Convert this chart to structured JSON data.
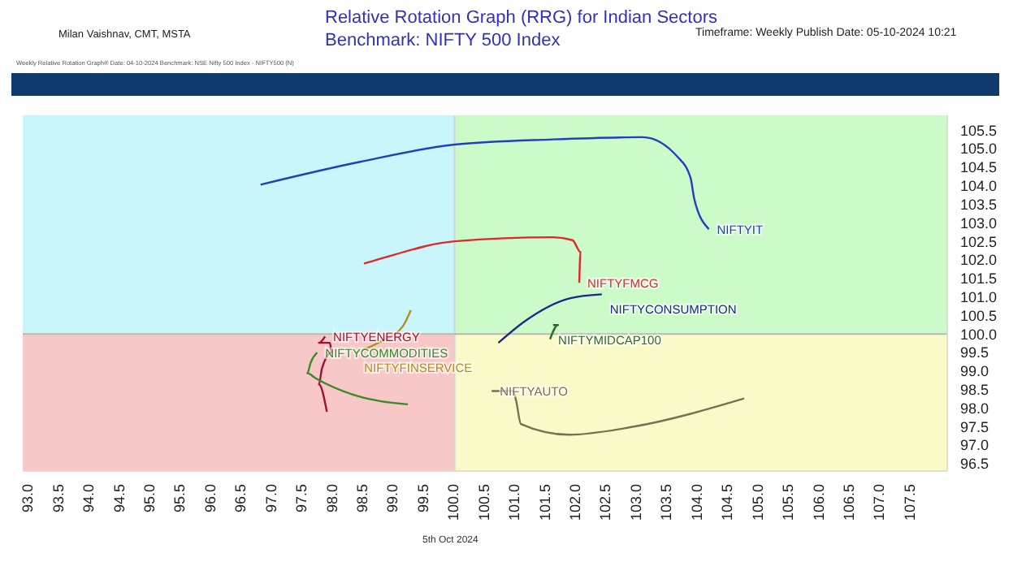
{
  "chart_data": {
    "type": "line",
    "title": "Relative Rotation Graph (RRG) for Indian Sectors",
    "subtitle": "Benchmark: NIFTY 500 Index",
    "annotations": [
      "Milan Vaishnav, CMT, MSTA",
      "Timeframe: Weekly   Publish Date: 05-10-2024 10:21",
      "Weekly Relative Rotation Graph®   Date: 04-10-2024   Benchmark: NSE Nifty 500 Index - NIFTY500 (N)",
      "5th Oct 2024"
    ],
    "series": [
      {
        "name": "NIFTYIT",
        "color": "#2040c0",
        "x": [
          96.81,
          98.43,
          100,
          101.62,
          103.09,
          103.67,
          103.88,
          103.94,
          104.18
        ],
        "values": [
          104.03,
          104.64,
          105.11,
          105.25,
          105.31,
          104.77,
          104.21,
          103.65,
          102.83
        ]
      },
      {
        "name": "NIFTYFMCG",
        "color": "#e02828",
        "x": [
          98.51,
          98.78,
          100,
          101.62,
          101.94,
          102.07,
          102.05
        ],
        "values": [
          101.9,
          102.03,
          102.5,
          102.61,
          102.53,
          102.21,
          101.38
        ]
      },
      {
        "name": "NIFTYCONSUMPTION",
        "color": "#1a2a8a",
        "x": [
          100.72,
          101.17,
          101.89,
          102.42
        ],
        "values": [
          99.76,
          100.36,
          100.96,
          101.07
        ]
      },
      {
        "name": "NIFTYMIDCAP100",
        "color": "#2e6b2e",
        "x": [
          101.62,
          101.7,
          101.57
        ],
        "values": [
          100.24,
          100.24,
          99.86
        ]
      },
      {
        "name": "NIFTYAUTO",
        "color": "#7a7050",
        "x": [
          104.76,
          102.95,
          101.89,
          101.09,
          101.01,
          100.96,
          100.61
        ],
        "values": [
          98.26,
          97.5,
          97.28,
          97.57,
          98.21,
          98.46,
          98.46
        ]
      },
      {
        "name": "NIFTYENERGY",
        "color": "#a01030",
        "x": [
          97.9,
          97.77,
          97.82,
          97.98,
          97.95,
          97.77,
          97.87
        ],
        "values": [
          97.9,
          98.64,
          99.07,
          99.5,
          99.76,
          99.76,
          99.93
        ]
      },
      {
        "name": "NIFTYCOMMODITIES",
        "color": "#3a8a2a",
        "x": [
          99.23,
          98.35,
          97.71,
          97.58,
          97.63,
          97.74
        ],
        "values": [
          98.1,
          98.35,
          98.81,
          98.94,
          99.21,
          99.5
        ]
      },
      {
        "name": "NIFTYFINSERVICE",
        "color": "#b09020",
        "x": [
          99.28,
          99.15,
          98.78,
          98.38
        ],
        "values": [
          100.64,
          100.21,
          99.79,
          99.5
        ]
      }
    ],
    "xlim": [
      92.9,
      108.1
    ],
    "ylim": [
      96.3,
      105.9
    ],
    "xticks": [
      {
        "value": 93,
        "label": "93.0"
      },
      93.5,
      {
        "value": 94,
        "label": "94.0"
      },
      94.5,
      {
        "value": 95,
        "label": "95.0"
      },
      95.5,
      {
        "value": 96,
        "label": "96.0"
      },
      96.5,
      {
        "value": 97,
        "label": "97.0"
      },
      97.5,
      {
        "value": 98,
        "label": "98.0"
      },
      98.5,
      {
        "value": 99,
        "label": "99.0"
      },
      99.5,
      {
        "value": 100,
        "label": "100.0"
      },
      100.5,
      {
        "value": 101,
        "label": "101.0"
      },
      101.5,
      {
        "value": 102,
        "label": "102.0"
      },
      102.5,
      {
        "value": 103,
        "label": "103.0"
      },
      103.5,
      {
        "value": 104,
        "label": "104.0"
      },
      104.5,
      {
        "value": 105,
        "label": "105.0"
      },
      105.5,
      {
        "value": 106,
        "label": "106.0"
      },
      106.5,
      {
        "value": 107,
        "label": "107.0"
      },
      107.5
    ],
    "yticks": [
      96.5,
      {
        "value": 97,
        "label": "97.0"
      },
      97.5,
      {
        "value": 98,
        "label": "98.0"
      },
      98.5,
      {
        "value": 99,
        "label": "99.0"
      },
      99.5,
      {
        "value": 100,
        "label": "100.0"
      },
      100.5,
      {
        "value": 101,
        "label": "101.0"
      },
      101.5,
      {
        "value": 102,
        "label": "102.0"
      },
      102.5,
      {
        "value": 103,
        "label": "103.0"
      },
      103.5,
      {
        "value": 104,
        "label": "104.0"
      },
      104.5,
      {
        "value": 105,
        "label": "105.0"
      },
      105.5
    ],
    "ref_lines": [
      {
        "axis": "x",
        "value": 100,
        "color": "#d4d4d4"
      },
      {
        "axis": "y",
        "value": 100,
        "color": "#b8b8b8"
      }
    ],
    "marker": "none",
    "line_style": "solid"
  }
}
